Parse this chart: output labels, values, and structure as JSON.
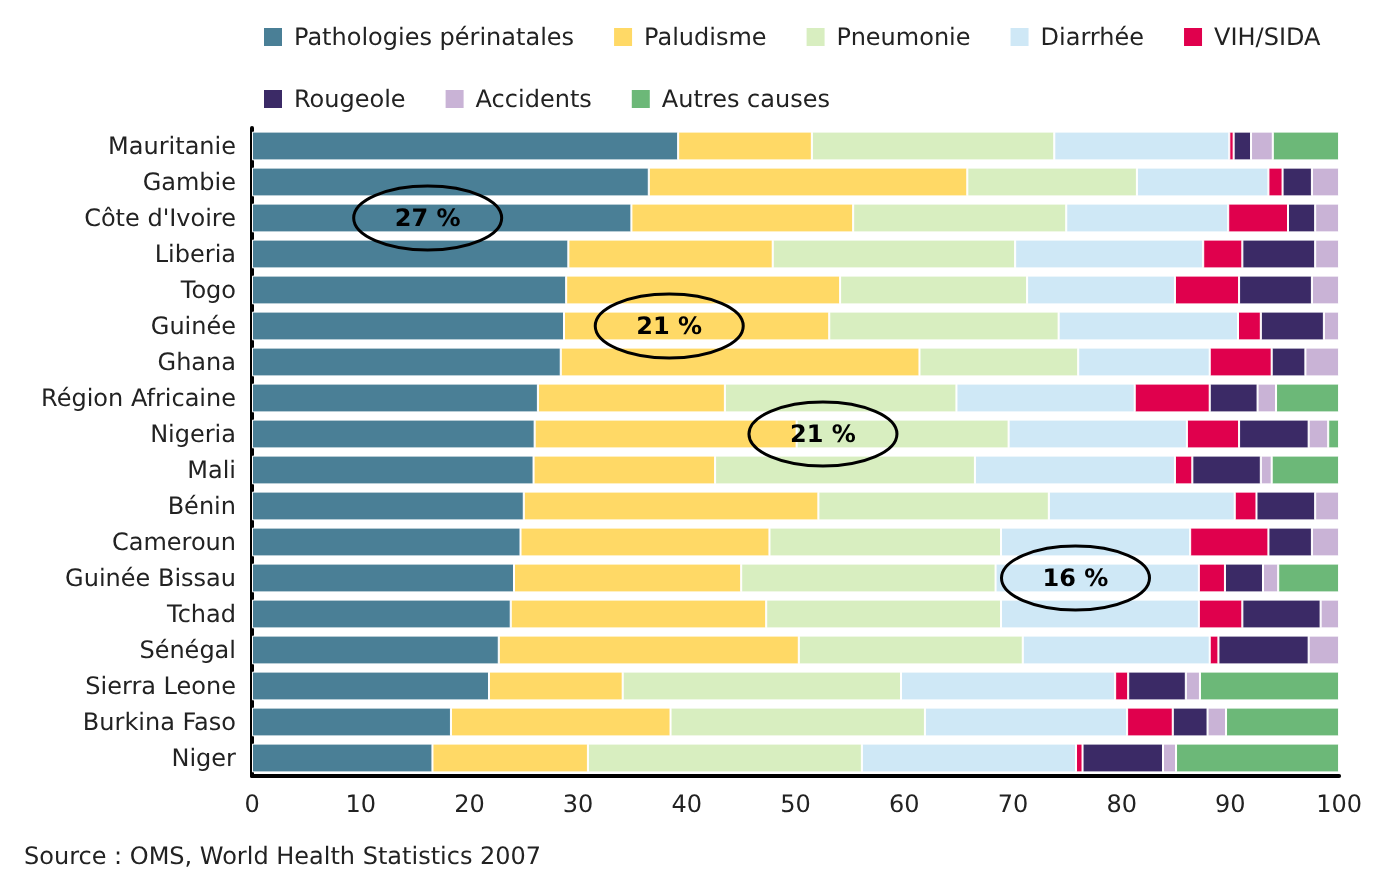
{
  "chart_data": {
    "type": "bar",
    "orientation": "horizontal",
    "stacked": true,
    "categories": [
      "Mauritanie",
      "Gambie",
      "Côte d'Ivoire",
      "Liberia",
      "Togo",
      "Guinée",
      "Ghana",
      "Région Africaine",
      "Nigeria",
      "Mali",
      "Bénin",
      "Cameroun",
      "Guinée Bissau",
      "Tchad",
      "Sénégal",
      "Sierra Leone",
      "Burkina Faso",
      "Niger"
    ],
    "series": [
      {
        "name": "Pathologies périnatales",
        "color": "#4a7f96",
        "values": [
          39.2,
          36.5,
          34.9,
          29.1,
          28.9,
          28.7,
          28.4,
          26.3,
          26.0,
          25.9,
          25.0,
          24.7,
          24.1,
          23.8,
          22.7,
          21.8,
          18.3,
          16.6
        ]
      },
      {
        "name": "Paludisme",
        "color": "#ffd966",
        "values": [
          12.3,
          29.3,
          20.4,
          18.8,
          25.2,
          24.4,
          33.0,
          17.2,
          24.1,
          16.7,
          27.1,
          22.9,
          20.9,
          23.5,
          27.6,
          12.3,
          20.2,
          14.3
        ]
      },
      {
        "name": "Pneumonie",
        "color": "#d8eec0",
        "values": [
          22.3,
          15.6,
          19.6,
          22.3,
          17.2,
          21.1,
          14.6,
          21.3,
          19.5,
          23.9,
          21.2,
          21.3,
          23.4,
          21.6,
          20.6,
          25.6,
          23.4,
          25.2
        ]
      },
      {
        "name": "Diarrhée",
        "color": "#cfe8f6",
        "values": [
          16.1,
          12.1,
          14.9,
          17.3,
          13.6,
          16.5,
          12.1,
          16.4,
          16.4,
          18.4,
          17.1,
          17.4,
          18.7,
          18.2,
          17.2,
          19.7,
          18.6,
          19.7
        ]
      },
      {
        "name": "VIH/SIDA",
        "color": "#e0004d",
        "values": [
          0.4,
          1.3,
          5.5,
          3.6,
          5.9,
          2.1,
          5.7,
          6.9,
          4.8,
          1.6,
          2.0,
          7.2,
          2.4,
          4.0,
          0.8,
          1.2,
          4.2,
          0.6
        ]
      },
      {
        "name": "Rougeole",
        "color": "#3b2a66",
        "values": [
          1.6,
          2.7,
          2.5,
          6.7,
          6.7,
          5.8,
          3.1,
          4.4,
          6.4,
          6.3,
          5.4,
          4.0,
          3.5,
          7.2,
          8.3,
          5.3,
          3.2,
          7.4
        ]
      },
      {
        "name": "Accidents",
        "color": "#c9b3d6",
        "values": [
          2.0,
          2.5,
          2.2,
          2.2,
          2.5,
          1.4,
          3.1,
          1.7,
          1.8,
          1.0,
          2.2,
          2.5,
          1.4,
          1.7,
          2.8,
          1.3,
          1.7,
          1.2
        ]
      },
      {
        "name": "Autres causes",
        "color": "#6cb878",
        "values": [
          6.1,
          null,
          null,
          null,
          null,
          null,
          null,
          5.8,
          1.0,
          6.2,
          null,
          null,
          5.6,
          null,
          null,
          12.8,
          10.4,
          15.0
        ]
      }
    ],
    "xlim": [
      0,
      100
    ],
    "xticks": [
      0,
      10,
      20,
      30,
      40,
      50,
      60,
      70,
      80,
      90,
      100
    ],
    "legend": "top",
    "grid": false,
    "annotations": [
      "27 %",
      "21 %",
      "21 %",
      "16 %",
      "Source : OMS, World Health Statistics 2007"
    ]
  }
}
